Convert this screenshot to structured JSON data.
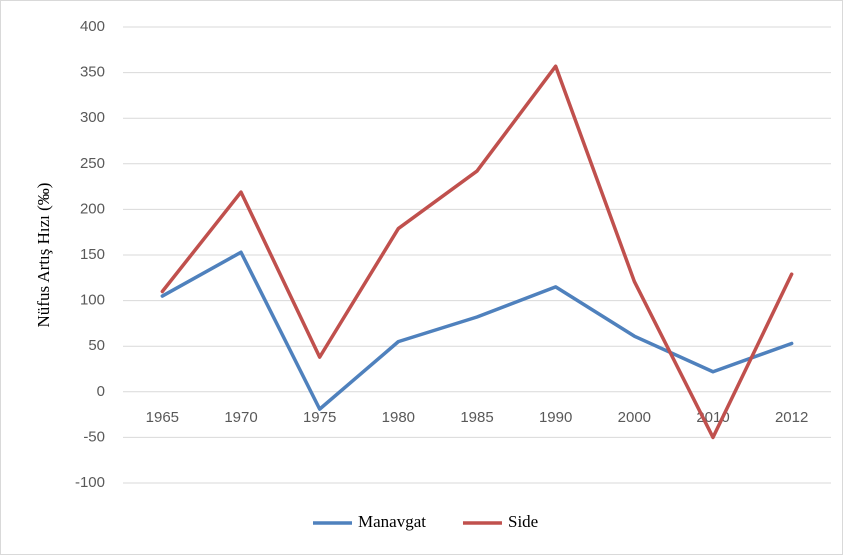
{
  "chart_data": {
    "type": "line",
    "y_label": "Nüfus Artış Hızı (‰)",
    "categories": [
      "1965",
      "1970",
      "1975",
      "1980",
      "1985",
      "1990",
      "2000",
      "2010",
      "2012"
    ],
    "series": [
      {
        "name": "Manavgat",
        "color": "#4f81bd",
        "values": [
          105,
          153,
          -19,
          55,
          82,
          115,
          61,
          22,
          53
        ]
      },
      {
        "name": "Side",
        "color": "#c0504d",
        "values": [
          110,
          219,
          38,
          179,
          242,
          357,
          121,
          -50,
          129
        ]
      }
    ],
    "ylim": [
      -100,
      400
    ],
    "yticks": [
      -100,
      -50,
      0,
      50,
      100,
      150,
      200,
      250,
      300,
      350,
      400
    ],
    "grid": true,
    "legend": "bottom"
  }
}
